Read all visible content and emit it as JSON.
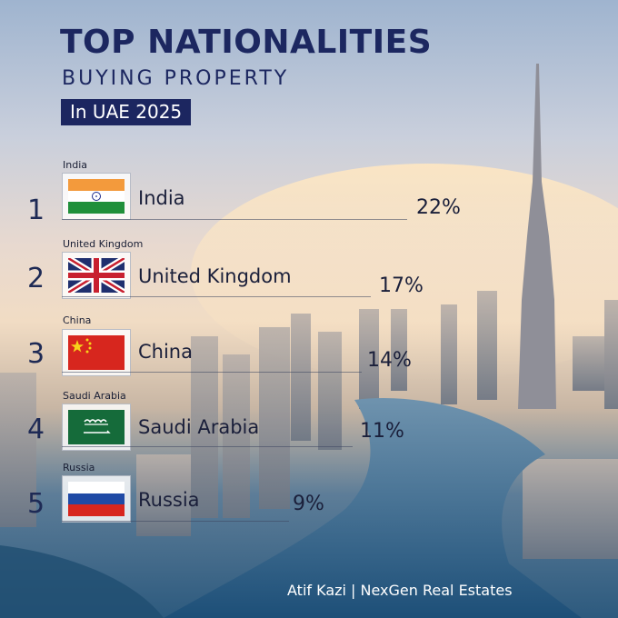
{
  "header": {
    "title": "TOP NATIONALITIES",
    "subtitle": "BUYING PROPERTY",
    "badge": "In UAE 2025"
  },
  "rankings": [
    {
      "rank": "1",
      "label": "India",
      "country": "India",
      "percent": "22%",
      "flag": "india-flag"
    },
    {
      "rank": "2",
      "label": "United Kingdom",
      "country": "United Kingdom",
      "percent": "17%",
      "flag": "uk-flag"
    },
    {
      "rank": "3",
      "label": "China",
      "country": "China",
      "percent": "14%",
      "flag": "china-flag"
    },
    {
      "rank": "4",
      "label": "Saudi Arabia",
      "country": "Saudi Arabia",
      "percent": "11%",
      "flag": "saudi-flag"
    },
    {
      "rank": "5",
      "label": "Russia",
      "country": "Russia",
      "percent": "9%",
      "flag": "russia-flag"
    }
  ],
  "footer": "Atif Kazi | NexGen Real Estates",
  "colors": {
    "title": "#1c2760",
    "badge": "#1c2660"
  }
}
